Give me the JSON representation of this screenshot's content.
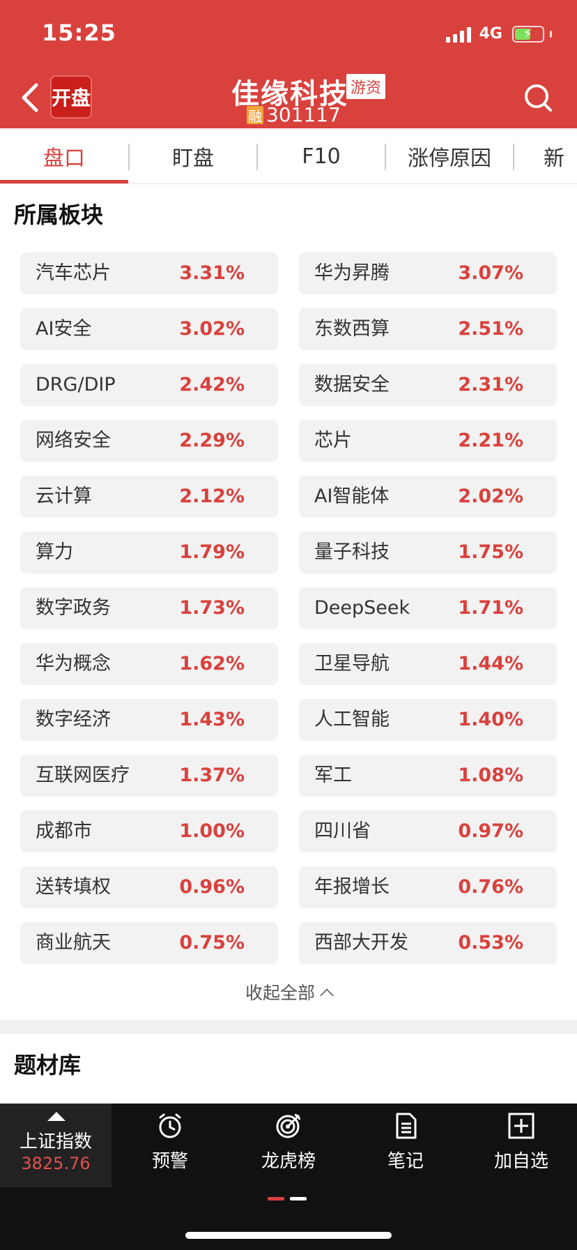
{
  "status_bar": {
    "time": "15:25",
    "network": "4G"
  },
  "header": {
    "app_logo_text": "开盘",
    "stock_name": "佳缘科技",
    "tag": "游资",
    "margin_badge": "融",
    "stock_code": "301117"
  },
  "tabs": [
    {
      "label": "盘口",
      "active": true
    },
    {
      "label": "盯盘",
      "active": false
    },
    {
      "label": "F10",
      "active": false
    },
    {
      "label": "涨停原因",
      "active": false
    },
    {
      "label": "新",
      "active": false
    }
  ],
  "sectors_section": {
    "title": "所属板块",
    "items": [
      {
        "name": "汽车芯片",
        "pct": "3.31%"
      },
      {
        "name": "华为昇腾",
        "pct": "3.07%"
      },
      {
        "name": "AI安全",
        "pct": "3.02%"
      },
      {
        "name": "东数西算",
        "pct": "2.51%"
      },
      {
        "name": "DRG/DIP",
        "pct": "2.42%"
      },
      {
        "name": "数据安全",
        "pct": "2.31%"
      },
      {
        "name": "网络安全",
        "pct": "2.29%"
      },
      {
        "name": "芯片",
        "pct": "2.21%"
      },
      {
        "name": "云计算",
        "pct": "2.12%"
      },
      {
        "name": "AI智能体",
        "pct": "2.02%"
      },
      {
        "name": "算力",
        "pct": "1.79%"
      },
      {
        "name": "量子科技",
        "pct": "1.75%"
      },
      {
        "name": "数字政务",
        "pct": "1.73%"
      },
      {
        "name": "DeepSeek",
        "pct": "1.71%"
      },
      {
        "name": "华为概念",
        "pct": "1.62%"
      },
      {
        "name": "卫星导航",
        "pct": "1.44%"
      },
      {
        "name": "数字经济",
        "pct": "1.43%"
      },
      {
        "name": "人工智能",
        "pct": "1.40%"
      },
      {
        "name": "互联网医疗",
        "pct": "1.37%"
      },
      {
        "name": "军工",
        "pct": "1.08%"
      },
      {
        "name": "成都市",
        "pct": "1.00%"
      },
      {
        "name": "四川省",
        "pct": "0.97%"
      },
      {
        "name": "送转填权",
        "pct": "0.96%"
      },
      {
        "name": "年报增长",
        "pct": "0.76%"
      },
      {
        "name": "商业航天",
        "pct": "0.75%"
      },
      {
        "name": "西部大开发",
        "pct": "0.53%"
      }
    ],
    "collapse_label": "收起全部"
  },
  "topics_section": {
    "title": "题材库"
  },
  "bottom_bar": {
    "index_name": "上证指数",
    "index_value": "3825.76",
    "nav": [
      {
        "label": "预警",
        "icon": "alarm-clock-icon"
      },
      {
        "label": "龙虎榜",
        "icon": "target-icon"
      },
      {
        "label": "笔记",
        "icon": "note-icon"
      },
      {
        "label": "加自选",
        "icon": "add-box-icon"
      }
    ]
  },
  "colors": {
    "brand_red": "#d9413d",
    "up_red": "#d9413d",
    "chip_bg": "#f2f2f2",
    "bottom_bar_bg": "#111111"
  }
}
